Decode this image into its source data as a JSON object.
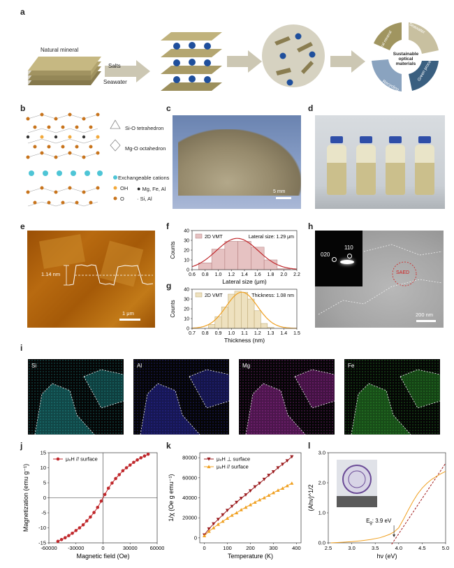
{
  "panel_letters": [
    "a",
    "b",
    "c",
    "d",
    "e",
    "f",
    "g",
    "h",
    "i",
    "j",
    "k",
    "l"
  ],
  "panel_a": {
    "natural_mineral": "Natural mineral",
    "salts": "Salts",
    "seawater": "Seawater",
    "cycle": {
      "center": "Sustainable optical materials",
      "segments": [
        "Natural mineral",
        "Seawater",
        "Green process",
        "Recycling"
      ]
    }
  },
  "panel_b": {
    "legend": [
      "Si-O tetrahedron",
      "Mg-O octahedron",
      "Exchangeable cations",
      "OH",
      "Mg, Fe, Al",
      "O",
      "Si, Al"
    ],
    "colors": {
      "cation": "#4ec5d6",
      "oh": "#f2a93b",
      "mg": "#333333",
      "o": "#c8741c",
      "si": "#aaaaaa"
    }
  },
  "panel_c": {
    "scale": "5 mm"
  },
  "panel_e": {
    "height": "1.14 nm",
    "scale": "1 μm"
  },
  "panel_h": {
    "spots": [
      "110",
      "020"
    ],
    "saed": "SAED",
    "scale": "200 nm"
  },
  "panel_i": {
    "maps": [
      {
        "label": "Si",
        "color": "#28c4c4"
      },
      {
        "label": "Al",
        "color": "#3a3ae6"
      },
      {
        "label": "Mg",
        "color": "#d236d2"
      },
      {
        "label": "Fe",
        "color": "#3cd23c"
      }
    ]
  },
  "chart_data": [
    {
      "id": "f",
      "type": "bar",
      "legend": "2D VMT",
      "annotation": "Lateral size: 1.29 μm",
      "xlabel": "Lateral size (μm)",
      "ylabel": "Counts",
      "xlim": [
        0.6,
        2.2
      ],
      "ylim": [
        0,
        40
      ],
      "xticks": [
        "0.6",
        "0.8",
        "1.0",
        "1.2",
        "1.4",
        "1.6",
        "1.8",
        "2.0",
        "2.2"
      ],
      "yticks": [
        "0",
        "10",
        "20",
        "30",
        "40"
      ],
      "bins": [
        0.8,
        1.0,
        1.2,
        1.4,
        1.6,
        1.8,
        2.0
      ],
      "bin_width": 0.2,
      "values": [
        7,
        21,
        29,
        29,
        23,
        10,
        1
      ],
      "fit": {
        "center": 1.29,
        "sigma": 0.32,
        "peak": 32
      }
    },
    {
      "id": "g",
      "type": "bar",
      "legend": "2D VMT",
      "annotation": "Thickness: 1.08 nm",
      "xlabel": "Thickness (nm)",
      "ylabel": "Counts",
      "xlim": [
        0.7,
        1.5
      ],
      "ylim": [
        0,
        40
      ],
      "xticks": [
        "0.7",
        "0.8",
        "0.9",
        "1.0",
        "1.1",
        "1.2",
        "1.3",
        "1.4",
        "1.5"
      ],
      "yticks": [
        "0",
        "10",
        "20",
        "30",
        "40"
      ],
      "bins": [
        0.85,
        0.9,
        0.95,
        1.0,
        1.05,
        1.1,
        1.15,
        1.2,
        1.25,
        1.3
      ],
      "bin_width": 0.05,
      "values": [
        4,
        12,
        22,
        35,
        38,
        37,
        30,
        18,
        5,
        1
      ],
      "fit": {
        "center": 1.08,
        "sigma": 0.12,
        "peak": 37
      }
    },
    {
      "id": "j",
      "type": "line",
      "xlabel": "Magnetic field (Oe)",
      "ylabel": "Magnetization (emu g⁻¹)",
      "xlim": [
        -60000,
        60000
      ],
      "ylim": [
        -15,
        15
      ],
      "xticks": [
        "-60000",
        "-30000",
        "0",
        "30000",
        "60000"
      ],
      "xtick_values": [
        -60000,
        -30000,
        0,
        30000,
        60000
      ],
      "yticks": [
        "-15",
        "-10",
        "-5",
        "0",
        "5",
        "10",
        "15"
      ],
      "ytick_values": [
        -15,
        -10,
        -5,
        0,
        5,
        10,
        15
      ],
      "series": [
        {
          "name": "μ₀H // surface",
          "color": "#c0282c",
          "marker": "circle",
          "x": [
            -50000,
            -46000,
            -42000,
            -38000,
            -34000,
            -30000,
            -26000,
            -22000,
            -18000,
            -14000,
            -10000,
            -6000,
            -2000,
            2000,
            6000,
            10000,
            14000,
            18000,
            22000,
            26000,
            30000,
            34000,
            38000,
            42000,
            46000,
            50000
          ],
          "y": [
            -14.5,
            -13.9,
            -13.3,
            -12.6,
            -11.8,
            -10.9,
            -10.0,
            -9.0,
            -7.7,
            -6.4,
            -4.9,
            -3.2,
            -1.1,
            1.1,
            3.2,
            4.9,
            6.4,
            7.7,
            9.0,
            10.0,
            10.9,
            11.8,
            12.6,
            13.3,
            13.9,
            14.5
          ]
        }
      ]
    },
    {
      "id": "k",
      "type": "line",
      "xlabel": "Temperature (K)",
      "ylabel": "1/χ (Oe g emu⁻¹)",
      "xlim": [
        -20,
        420
      ],
      "ylim": [
        -5000,
        85000
      ],
      "xticks": [
        "0",
        "100",
        "200",
        "300",
        "400"
      ],
      "xtick_values": [
        0,
        100,
        200,
        300,
        400
      ],
      "yticks": [
        "0",
        "20000",
        "40000",
        "60000",
        "80000"
      ],
      "ytick_values": [
        0,
        20000,
        40000,
        60000,
        80000
      ],
      "series": [
        {
          "name": "μ₀H ⊥ surface",
          "color": "#9b1b1e",
          "marker": "triangle-down",
          "x": [
            0,
            20,
            40,
            60,
            80,
            100,
            120,
            140,
            160,
            180,
            200,
            220,
            240,
            260,
            280,
            300,
            320,
            340,
            360,
            380
          ],
          "y": [
            3000,
            9000,
            14000,
            18500,
            23000,
            27500,
            31500,
            35500,
            39500,
            43000,
            47000,
            51000,
            54500,
            58500,
            62500,
            66000,
            70000,
            73500,
            77000,
            81000
          ]
        },
        {
          "name": "μ₀H // surface",
          "color": "#f0a020",
          "marker": "triangle-up",
          "x": [
            0,
            20,
            40,
            60,
            80,
            100,
            120,
            140,
            160,
            180,
            200,
            220,
            240,
            260,
            280,
            300,
            320,
            340,
            360,
            380
          ],
          "y": [
            2000,
            6500,
            10000,
            13500,
            16500,
            19500,
            22500,
            25000,
            28000,
            30500,
            33000,
            35500,
            38000,
            40000,
            42500,
            45000,
            47500,
            49500,
            52000,
            54500
          ]
        }
      ]
    },
    {
      "id": "l",
      "type": "line",
      "xlabel": "hν (eV)",
      "ylabel": "(Ahν)^1/2",
      "annotation": "E",
      "annotation_sub": "g",
      "annotation_value": ": 3.9 eV",
      "xlim": [
        2.5,
        5.0
      ],
      "ylim": [
        0,
        3.0
      ],
      "xticks": [
        "2.5",
        "3.0",
        "3.5",
        "4.0",
        "4.5",
        "5.0"
      ],
      "xtick_values": [
        2.5,
        3.0,
        3.5,
        4.0,
        4.5,
        5.0
      ],
      "yticks": [
        "0.0",
        "1.0",
        "2.0",
        "3.0"
      ],
      "ytick_values": [
        0,
        1,
        2,
        3
      ],
      "series": [
        {
          "color": "#f0a020",
          "x": [
            2.55,
            2.8,
            3.0,
            3.2,
            3.4,
            3.6,
            3.7,
            3.8,
            3.9,
            4.0,
            4.1,
            4.2,
            4.3,
            4.4,
            4.5,
            4.6,
            4.7,
            4.8,
            4.9,
            5.0
          ],
          "y": [
            0.0,
            0.02,
            0.04,
            0.07,
            0.11,
            0.17,
            0.22,
            0.28,
            0.36,
            0.5,
            0.78,
            1.08,
            1.37,
            1.62,
            1.82,
            1.98,
            2.11,
            2.21,
            2.3,
            2.38
          ]
        }
      ],
      "tangent": {
        "x": [
          3.85,
          5.0
        ],
        "y": [
          -0.05,
          2.65
        ]
      }
    }
  ]
}
